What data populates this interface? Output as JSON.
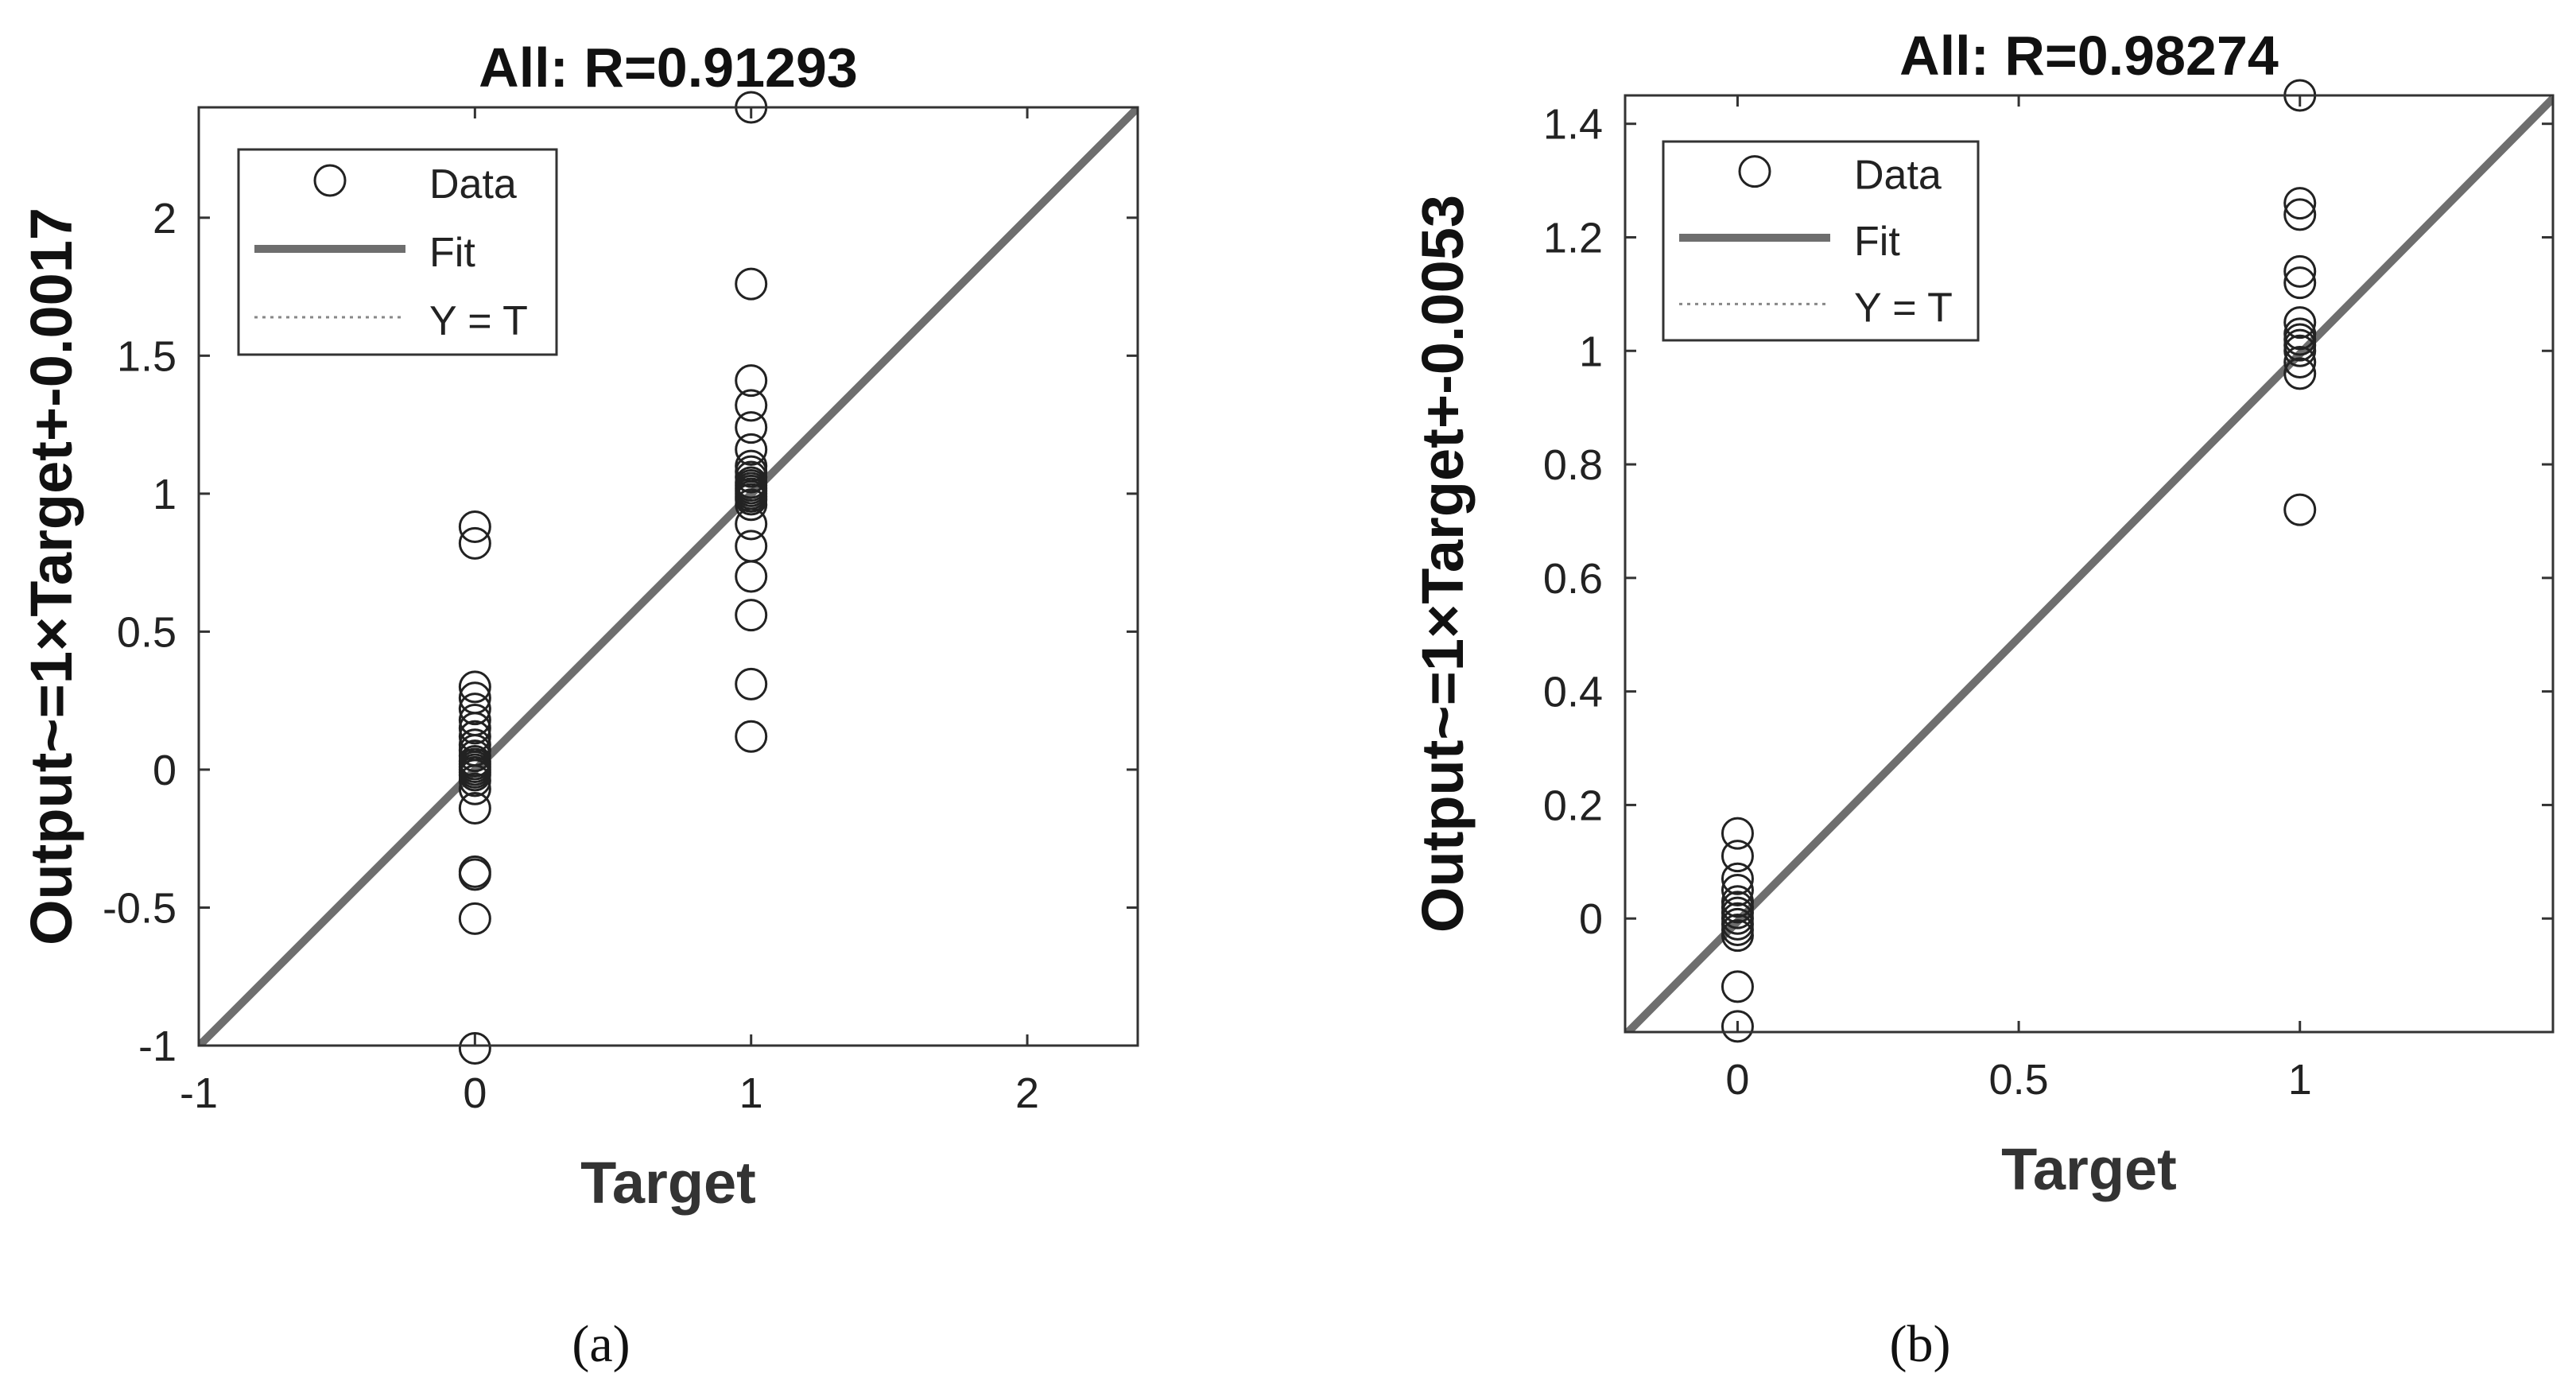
{
  "chart_data": [
    {
      "type": "scatter",
      "panel_label": "(a)",
      "title": "All: R=0.91293",
      "xlabel": "Target",
      "ylabel": "Output~=1×Target+-0.0017",
      "xlim": [
        -1,
        2.4
      ],
      "ylim": [
        -1,
        2.4
      ],
      "xticks": [
        -1,
        0,
        1,
        2
      ],
      "xtick_labels": [
        "-1",
        "0",
        "1",
        "2"
      ],
      "yticks": [
        -1,
        -0.5,
        0,
        0.5,
        1,
        1.5,
        2
      ],
      "ytick_labels": [
        "-1",
        "-0.5",
        "0",
        "0.5",
        "1",
        "1.5",
        "2"
      ],
      "grid": false,
      "legend": {
        "placement": "top-left",
        "entries": [
          "Data",
          "Fit",
          "Y = T"
        ]
      },
      "fit": {
        "slope": 1,
        "intercept": -0.0017
      },
      "series": [
        {
          "name": "Data",
          "x": [
            0,
            0,
            0,
            0,
            0,
            0,
            0,
            0,
            0,
            0,
            0,
            0,
            0,
            0,
            0,
            0,
            0,
            0,
            0,
            0,
            0,
            0,
            0,
            0,
            1,
            1,
            1,
            1,
            1,
            1,
            1,
            1,
            1,
            1,
            1,
            1,
            1,
            1,
            1,
            1,
            1,
            1,
            1,
            1,
            1,
            1,
            1
          ],
          "y": [
            0.88,
            0.82,
            0.3,
            0.26,
            0.22,
            0.18,
            0.15,
            0.12,
            0.09,
            0.07,
            0.05,
            0.03,
            0.02,
            0.01,
            0,
            -0.01,
            -0.02,
            -0.04,
            -0.07,
            -0.14,
            -0.37,
            -0.38,
            -0.54,
            -1.01,
            2.4,
            1.76,
            1.41,
            1.32,
            1.24,
            1.16,
            1.1,
            1.08,
            1.06,
            1.04,
            1.03,
            1.02,
            1.01,
            1,
            0.99,
            0.98,
            0.96,
            0.89,
            0.81,
            0.7,
            0.56,
            0.31,
            0.12
          ]
        }
      ]
    },
    {
      "type": "scatter",
      "panel_label": "(b)",
      "title": "All: R=0.98274",
      "xlabel": "Target",
      "ylabel": "Output~=1×Target+-0.0053",
      "xlim": [
        -0.2,
        1.45
      ],
      "ylim": [
        -0.2,
        1.45
      ],
      "xticks": [
        0,
        0.5,
        1
      ],
      "xtick_labels": [
        "0",
        "0.5",
        "1"
      ],
      "yticks": [
        0,
        0.2,
        0.4,
        0.6,
        0.8,
        1,
        1.2,
        1.4
      ],
      "ytick_labels": [
        "0",
        "0.2",
        "0.4",
        "0.6",
        "0.8",
        "1",
        "1.2",
        "1.4"
      ],
      "grid": false,
      "legend": {
        "placement": "top-left",
        "entries": [
          "Data",
          "Fit",
          "Y = T"
        ]
      },
      "fit": {
        "slope": 1,
        "intercept": -0.0053
      },
      "series": [
        {
          "name": "Data",
          "x": [
            0,
            0,
            0,
            0,
            0,
            0,
            0,
            0,
            0,
            0,
            0,
            0,
            0,
            1,
            1,
            1,
            1,
            1,
            1,
            1,
            1,
            1,
            1,
            1,
            1,
            1
          ],
          "y": [
            0.15,
            0.11,
            0.07,
            0.05,
            0.03,
            0.02,
            0.01,
            0,
            -0.01,
            -0.02,
            -0.03,
            -0.12,
            -0.19,
            1.45,
            1.26,
            1.24,
            1.14,
            1.12,
            1.05,
            1.03,
            1.02,
            1.01,
            1,
            0.98,
            0.96,
            0.72
          ]
        }
      ]
    }
  ]
}
